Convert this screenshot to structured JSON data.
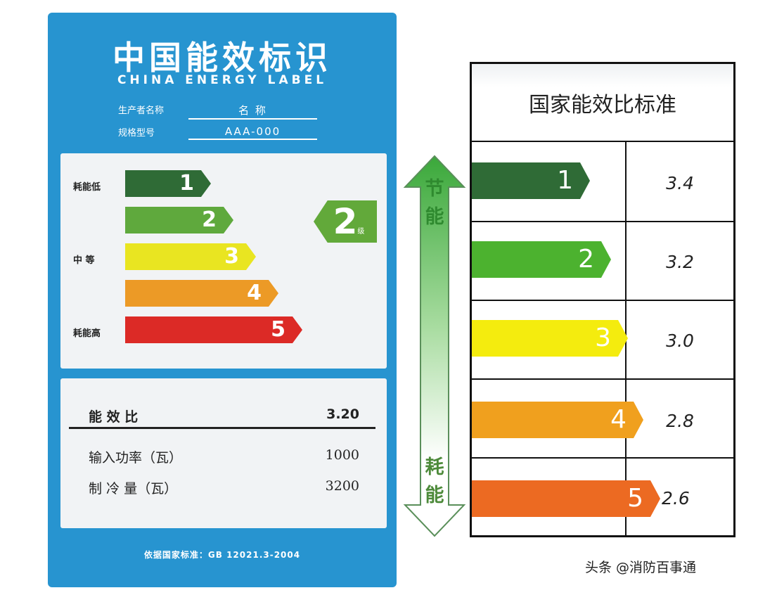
{
  "label": {
    "title": "中国能效标识",
    "subtitle": "CHINA ENERGY LABEL",
    "producer_key": "生产者名称",
    "producer_value": "名 称",
    "model_key": "规格型号",
    "model_value": "AAA-000",
    "side_low": "耗能低",
    "side_mid": "中  等",
    "side_high": "耗能高",
    "levels": [
      "1",
      "2",
      "3",
      "4",
      "5"
    ],
    "rating": "2",
    "rating_suffix": "级",
    "efficiency_key": "能 效 比",
    "efficiency_value": "3.20",
    "power_key": "输入功率（瓦）",
    "power_value": "1000",
    "cooling_key": "制 冷 量（瓦）",
    "cooling_value": "3200",
    "standard": "依据国家标准：GB 12021.3-2004"
  },
  "arrow": {
    "top_word_1": "节",
    "top_word_2": "能",
    "bottom_word_1": "耗",
    "bottom_word_2": "能"
  },
  "standard_table": {
    "title": "国家能效比标准",
    "rows": [
      {
        "grade": "1",
        "value": "3.4"
      },
      {
        "grade": "2",
        "value": "3.2"
      },
      {
        "grade": "3",
        "value": "3.0"
      },
      {
        "grade": "4",
        "value": "2.8"
      },
      {
        "grade": "5",
        "value": "2.6"
      }
    ]
  },
  "colors": {
    "label_bg": "#2794d0",
    "grade_1": "#2f6b36",
    "grade_2": "#55a43a",
    "grade_3": "#e9e521",
    "grade_4": "#ec9a26",
    "grade_5": "#e02a26"
  },
  "watermark": "头条 @消防百事通"
}
